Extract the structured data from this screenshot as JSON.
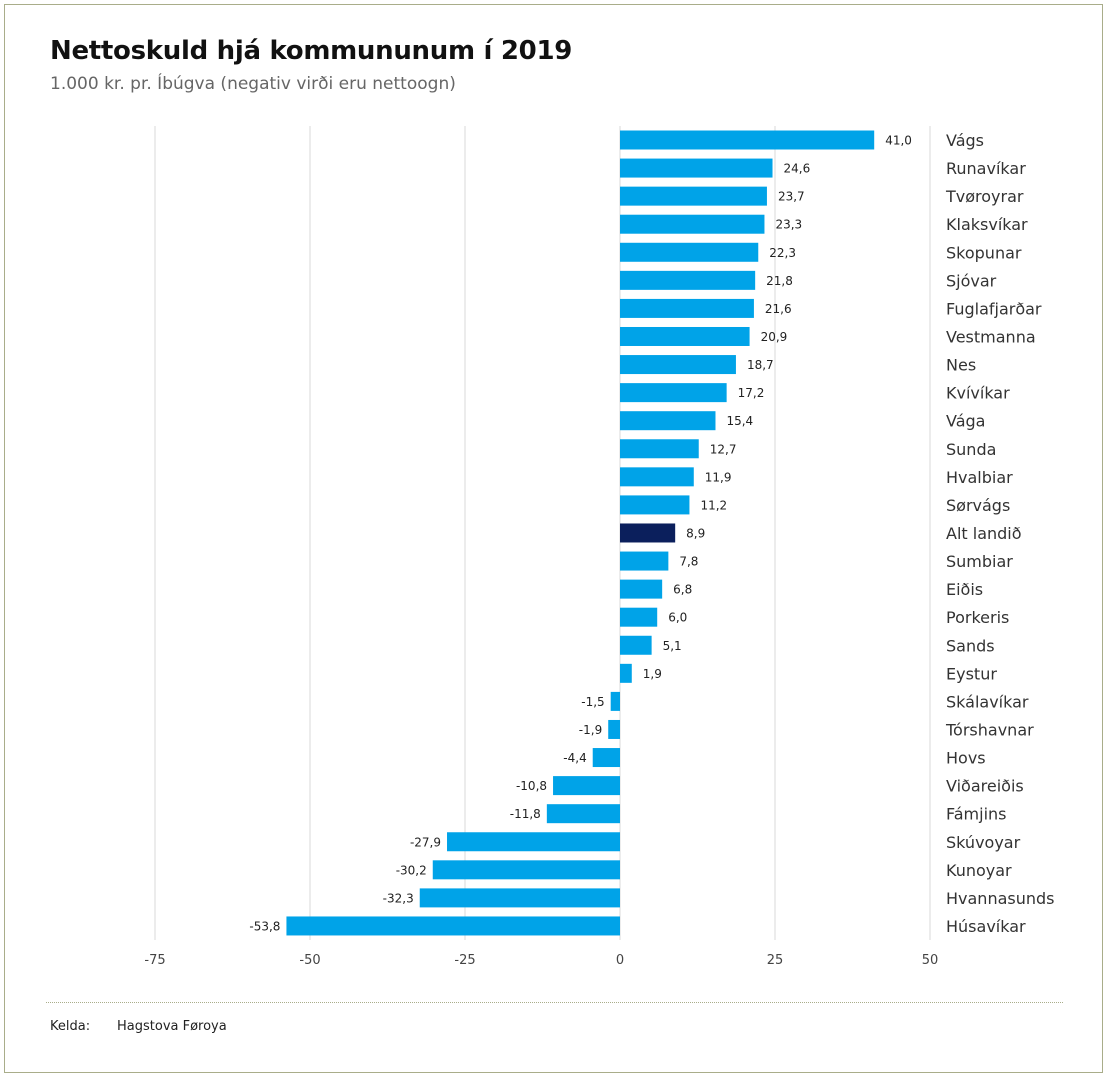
{
  "chart_data": {
    "type": "bar",
    "orientation": "horizontal",
    "title": "Nettoskuld hjá kommununum í 2019",
    "subtitle": "1.000 kr. pr. Íbúgva (negativ virði eru nettoogn)",
    "categories": [
      "Vágs",
      "Runavíkar",
      "Tvøroyrar",
      "Klaksvíkar",
      "Skopunar",
      "Sjóvar",
      "Fuglafjarðar",
      "Vestmanna",
      "Nes",
      "Kvívíkar",
      "Vága",
      "Sunda",
      "Hvalbiar",
      "Sørvágs",
      "Alt landið",
      "Sumbiar",
      "Eiðis",
      "Porkeris",
      "Sands",
      "Eystur",
      "Skálavíkar",
      "Tórshavnar",
      "Hovs",
      "Viðareiðis",
      "Fámjins",
      "Skúvoyar",
      "Kunoyar",
      "Hvannasunds",
      "Húsavíkar"
    ],
    "values": [
      41.0,
      24.6,
      23.7,
      23.3,
      22.3,
      21.8,
      21.6,
      20.9,
      18.7,
      17.2,
      15.4,
      12.7,
      11.9,
      11.2,
      8.9,
      7.8,
      6.8,
      6.0,
      5.1,
      1.9,
      -1.5,
      -1.9,
      -4.4,
      -10.8,
      -11.8,
      -27.9,
      -30.2,
      -32.3,
      -53.8
    ],
    "value_labels": [
      "41,0",
      "24,6",
      "23,7",
      "23,3",
      "22,3",
      "21,8",
      "21,6",
      "20,9",
      "18,7",
      "17,2",
      "15,4",
      "12,7",
      "11,9",
      "11,2",
      "8,9",
      "7,8",
      "6,8",
      "6,0",
      "5,1",
      "1,9",
      "-1,5",
      "-1,9",
      "-4,4",
      "-10,8",
      "-11,8",
      "-27,9",
      "-30,2",
      "-32,3",
      "-53,8"
    ],
    "highlight": "Alt landið",
    "xlim": [
      -75,
      50
    ],
    "xticks": [
      -75,
      -50,
      -25,
      0,
      25,
      50
    ],
    "xtick_labels": [
      "-75",
      "-50",
      "-25",
      "0",
      "25",
      "50"
    ],
    "grid": true,
    "colors": {
      "bar": "#00a3e8",
      "highlight": "#0b1f5c",
      "grid": "#d9d9d9"
    }
  },
  "source": {
    "label": "Kelda:",
    "value": "Hagstova Føroya"
  }
}
